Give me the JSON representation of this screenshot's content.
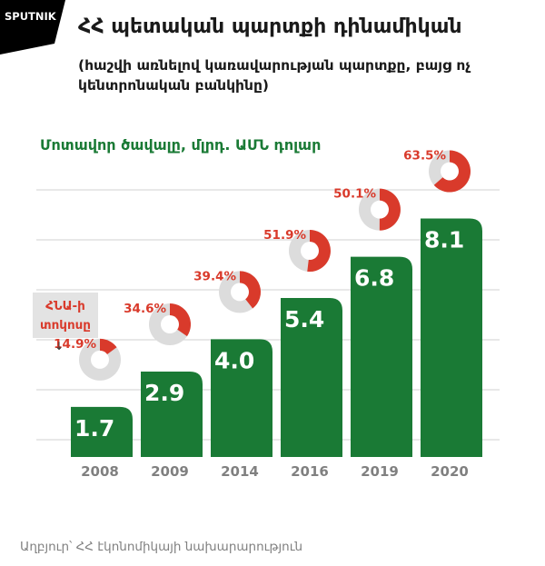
{
  "header": {
    "logo_text": "SPUTNIK",
    "title": "ՀՀ պետական պարտքի դինամիկան",
    "subtitle": "(հաշվի առնելով կառավարության պարտքը, բայց ոչ կենտրոնական բանկինը)"
  },
  "chart_data": {
    "type": "bar",
    "title": "ՀՀ պետական պարտքի դինամիկան",
    "subtitle": "(հաշվի առնելով կառավարության պարտքը, բայց ոչ կենտրոնական բանկինը)",
    "ylabel": "Մոտավոր ծավալը, մլրդ. ԱՄՆ դոլար",
    "categories": [
      "2008",
      "2009",
      "2014",
      "2016",
      "2019",
      "2020"
    ],
    "series": [
      {
        "values": [
          1.7,
          2.9,
          4.0,
          5.4,
          6.8,
          8.1
        ]
      }
    ],
    "value_labels": [
      "1.7",
      "2.9",
      "4.0",
      "5.4",
      "6.8",
      "8.1"
    ],
    "debt_to_gdp_percent": [
      14.9,
      34.6,
      39.4,
      51.9,
      50.1,
      63.5
    ],
    "debt_to_gdp_labels": [
      "14.9%",
      "34.6%",
      "39.4%",
      "51.9%",
      "50.1%",
      "63.5%"
    ],
    "annotation": {
      "text_line1": "ՀՆԱ-ի",
      "text_line2": "տոկոսը",
      "arrow": "↓"
    },
    "grid": true,
    "colors": {
      "bar": "#1a7a35",
      "donut_fill": "#d93a2b",
      "donut_track": "#dcdcdc",
      "percent_label": "#d93a2b",
      "annotation_bg": "#e3e3e3",
      "grid": "#d2d2d2",
      "tick": "#808080"
    }
  },
  "footer": {
    "source": "Աղբյուր՝ ՀՀ էկոնոմիկայի նախարարություն"
  }
}
